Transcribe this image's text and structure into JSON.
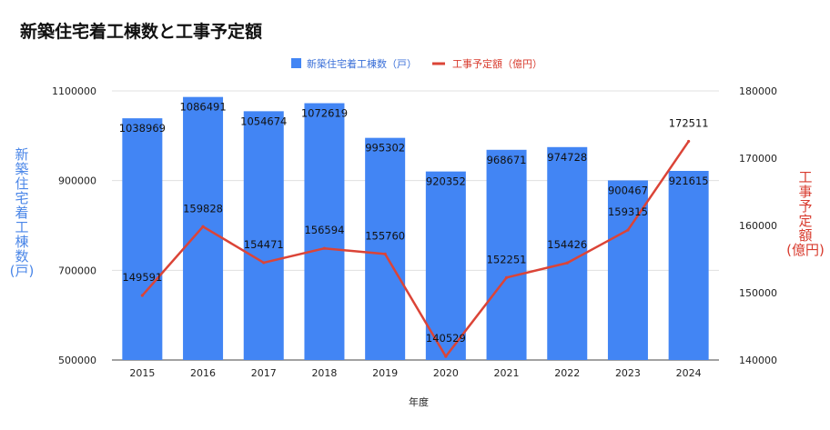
{
  "chart_data": {
    "type": "bar",
    "title": "新築住宅着工棟数と工事予定額",
    "xlabel": "年度",
    "categories": [
      "2015",
      "2016",
      "2017",
      "2018",
      "2019",
      "2020",
      "2021",
      "2022",
      "2023",
      "2024"
    ],
    "series": [
      {
        "name": "新築住宅着工棟数（戸）",
        "type": "bar",
        "axis": "left",
        "color": "#4285f4",
        "values": [
          1038969,
          1086491,
          1054674,
          1072619,
          995302,
          920352,
          968671,
          974728,
          900467,
          921615
        ]
      },
      {
        "name": "工事予定額（億円）",
        "type": "line",
        "axis": "right",
        "color": "#db4437",
        "values": [
          149591,
          159828,
          154471,
          156594,
          155760,
          140529,
          152251,
          154426,
          159315,
          172511
        ]
      }
    ],
    "left_axis": {
      "label_chars": [
        "新",
        "築",
        "住",
        "宅",
        "着",
        "工",
        "棟",
        "数",
        "(戸)"
      ],
      "ylim": [
        500000,
        1100000
      ],
      "ticks": [
        "500000",
        "700000",
        "900000",
        "1100000"
      ],
      "tick_values": [
        500000,
        700000,
        900000,
        1100000
      ]
    },
    "right_axis": {
      "label_chars": [
        "工",
        "事",
        "予",
        "定",
        "額",
        "(億円)"
      ],
      "ylim": [
        140000,
        180000
      ],
      "ticks": [
        "140000",
        "150000",
        "160000",
        "170000",
        "180000"
      ],
      "tick_values": [
        140000,
        150000,
        160000,
        170000,
        180000
      ]
    },
    "legend_position": "top-center",
    "grid": true
  }
}
